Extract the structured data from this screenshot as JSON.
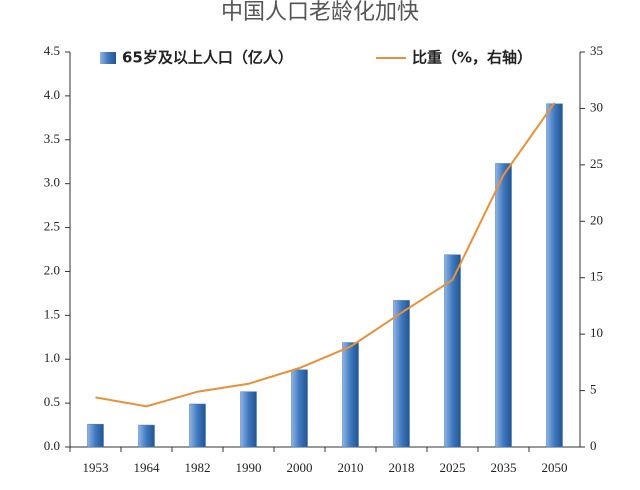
{
  "chart_data": {
    "type": "bar-line",
    "title": "中国人口老龄化加快",
    "categories": [
      "1953",
      "1964",
      "1982",
      "1990",
      "2000",
      "2010",
      "2018",
      "2025",
      "2035",
      "2050"
    ],
    "series": [
      {
        "name": "65岁及以上人口（亿人）",
        "type": "bar",
        "color": "#3f78bf",
        "values": [
          0.26,
          0.25,
          0.49,
          0.63,
          0.88,
          1.19,
          1.67,
          2.19,
          3.23,
          3.91
        ]
      },
      {
        "name": "比重（%，右轴）",
        "type": "line",
        "axis": "y2",
        "color": "#e8913a",
        "values": [
          4.4,
          3.6,
          4.9,
          5.6,
          7.0,
          8.9,
          11.9,
          14.8,
          24.1,
          30.5
        ]
      }
    ],
    "ylim": [
      0,
      4.5
    ],
    "yticks": [
      {
        "value": 0,
        "label": "0.0"
      },
      0.5,
      {
        "value": 1,
        "label": "1.0"
      },
      1.5,
      {
        "value": 2,
        "label": "2.0"
      },
      2.5,
      {
        "value": 3,
        "label": "3.0"
      },
      3.5,
      {
        "value": 4,
        "label": "4.0"
      },
      4.5
    ],
    "y2lim": [
      0,
      35
    ],
    "y2ticks": [
      0,
      5,
      10,
      15,
      20,
      25,
      30,
      35
    ],
    "legend": "top",
    "grid": false
  }
}
